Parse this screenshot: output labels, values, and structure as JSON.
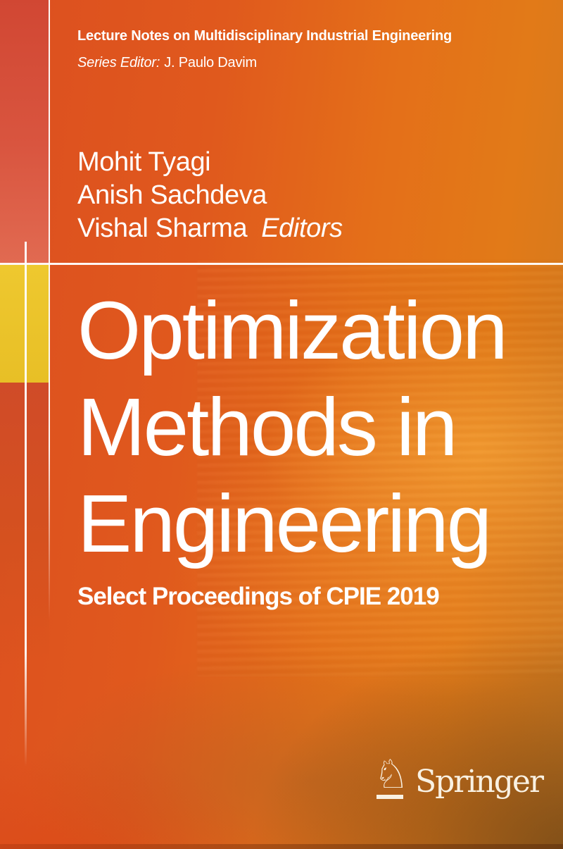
{
  "series": {
    "title": "Lecture Notes on Multidisciplinary Industrial Engineering",
    "editor_label": "Series Editor:",
    "editor_name": "J. Paulo Davim"
  },
  "editors": {
    "names": [
      "Mohit Tyagi",
      "Anish Sachdeva",
      "Vishal Sharma"
    ],
    "label": "Editors"
  },
  "title": {
    "lines": [
      "Optimization",
      "Methods in",
      "Engineering"
    ]
  },
  "subtitle": "Select Proceedings of CPIE 2019",
  "publisher": {
    "name": "Springer",
    "knight_glyph": "♘"
  },
  "colors": {
    "main_orange": "#e0591d",
    "bright_orange": "#e4791a",
    "salmon_strip": "#d9553f",
    "yellow_accent": "#ecc42a",
    "deep_red_strip": "#d04b28",
    "brown_shadow": "#8a5a28",
    "rule_white": "#ffffff",
    "text_white": "#ffffff"
  }
}
